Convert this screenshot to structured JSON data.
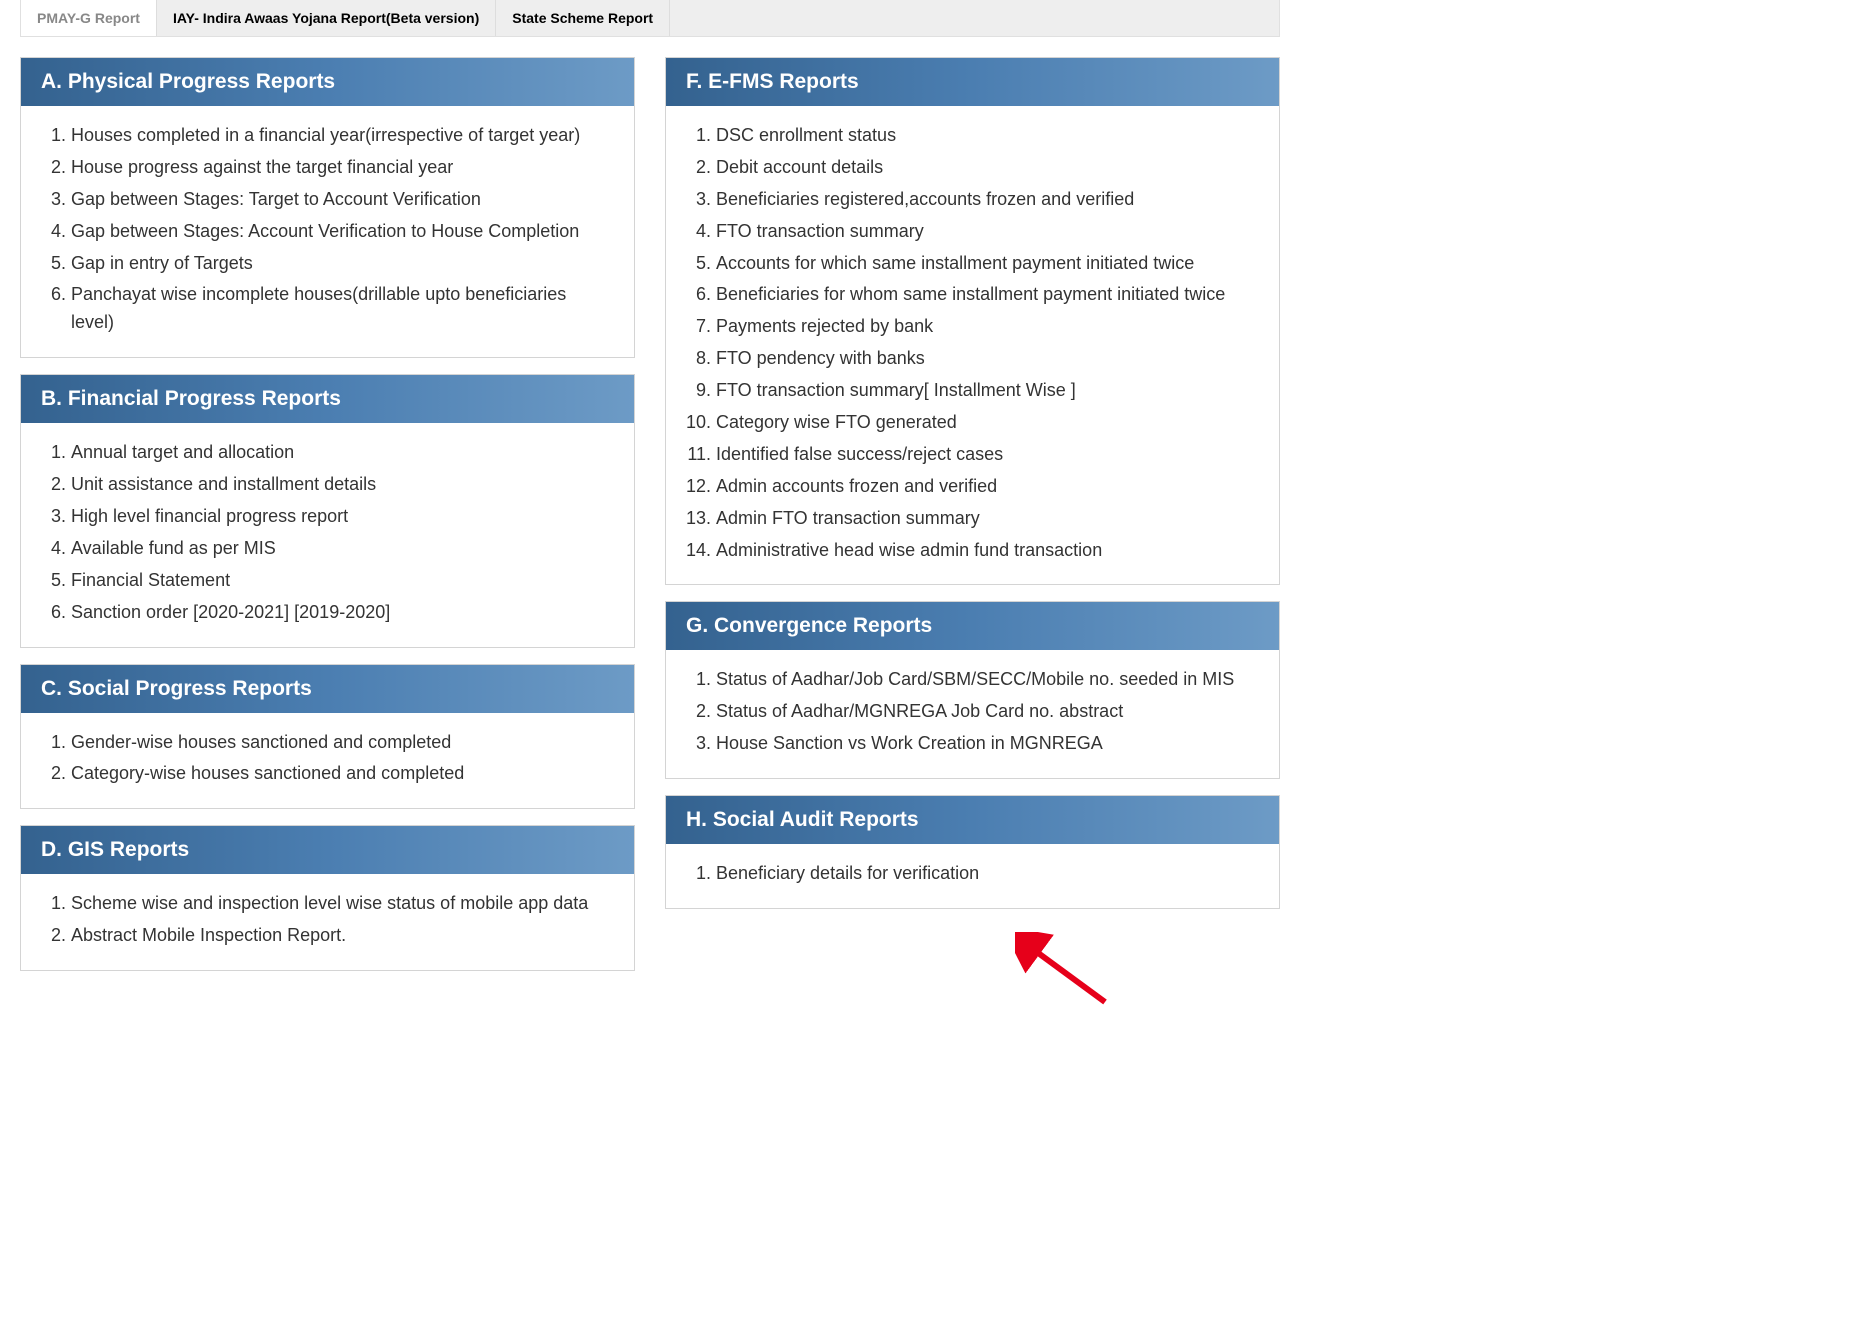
{
  "tabs": [
    {
      "label": "PMAY-G Report",
      "active": true
    },
    {
      "label": "IAY- Indira Awaas Yojana Report(Beta version)",
      "active": false
    },
    {
      "label": "State Scheme Report",
      "active": false
    }
  ],
  "left_sections": [
    {
      "title": "A. Physical Progress Reports",
      "items": [
        "Houses completed in a financial year(irrespective of target year)",
        "House progress against the target financial year",
        "Gap between Stages: Target to Account Verification",
        "Gap between Stages: Account Verification to House Completion",
        "Gap in entry of Targets",
        "Panchayat wise incomplete houses(drillable upto beneficiaries level)"
      ]
    },
    {
      "title": "B. Financial Progress Reports",
      "items": [
        "Annual target and allocation",
        "Unit assistance and installment details",
        "High level financial progress report",
        "Available fund as per MIS",
        "Financial Statement",
        "Sanction order [2020-2021] [2019-2020]"
      ]
    },
    {
      "title": "C. Social Progress Reports",
      "items": [
        "Gender-wise houses sanctioned and completed",
        "Category-wise houses sanctioned and completed"
      ]
    },
    {
      "title": "D. GIS Reports",
      "items": [
        "Scheme wise and inspection level wise status of mobile app data",
        "Abstract Mobile Inspection Report."
      ]
    }
  ],
  "right_sections": [
    {
      "title": "F. E-FMS Reports",
      "items": [
        "DSC enrollment status",
        "Debit account details",
        "Beneficiaries registered,accounts frozen and verified",
        "FTO transaction summary",
        "Accounts for which same installment payment initiated twice",
        "Beneficiaries for whom same installment payment initiated twice",
        "Payments rejected by bank",
        "FTO pendency with banks",
        "FTO transaction summary[ Installment Wise ]",
        "Category wise FTO generated",
        "Identified false success/reject cases",
        "Admin accounts frozen and verified",
        "Admin FTO transaction summary",
        "Administrative head wise admin fund transaction"
      ]
    },
    {
      "title": "G. Convergence Reports",
      "items": [
        "Status of Aadhar/Job Card/SBM/SECC/Mobile no. seeded in MIS",
        "Status of Aadhar/MGNREGA Job Card no. abstract",
        "House Sanction vs Work Creation in MGNREGA"
      ]
    },
    {
      "title": "H. Social Audit Reports",
      "items": [
        "Beneficiary details for verification"
      ]
    }
  ],
  "colors": {
    "header_grad_from": "#34628f",
    "header_grad_to": "#6d9bc6",
    "tab_bg": "#eeeeee",
    "arrow_color": "#e6001a"
  }
}
